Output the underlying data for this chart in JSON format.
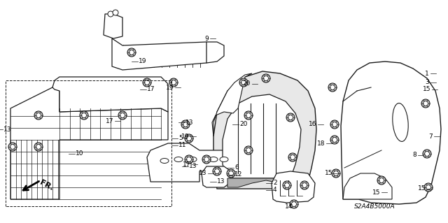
{
  "bg_color": "#ffffff",
  "diagram_code": "S2A4B5000A",
  "figsize": [
    6.4,
    3.19
  ],
  "dpi": 100,
  "line_color": "#1a1a1a",
  "gray_fill": "#c8c8c8",
  "light_gray": "#e0e0e0"
}
